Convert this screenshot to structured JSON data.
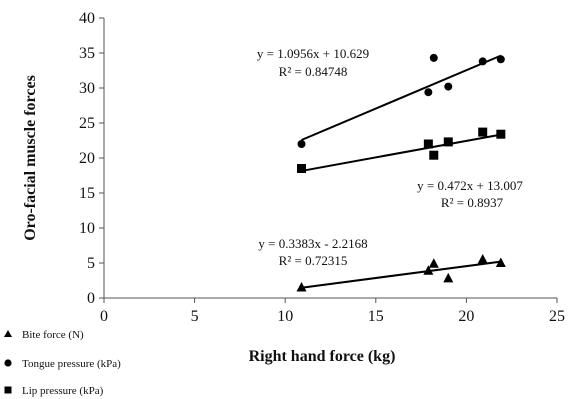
{
  "chart_data": {
    "type": "scatter",
    "title": "",
    "xlabel": "Right hand force (kg)",
    "ylabel": "Oro-facial muscle forces",
    "xlim": [
      0,
      25
    ],
    "ylim": [
      0,
      40
    ],
    "xticks": [
      "0",
      "5",
      "10",
      "15",
      "20",
      "25"
    ],
    "yticks": [
      "0",
      "5",
      "10",
      "15",
      "20",
      "25",
      "30",
      "35",
      "40"
    ],
    "grid": false,
    "legend_position": "bottom-left",
    "series": [
      {
        "name": "Bite force (N)",
        "marker": "triangle",
        "color": "#000000",
        "x": [
          10.9,
          17.9,
          18.2,
          19.0,
          20.9,
          21.9
        ],
        "y": [
          1.5,
          3.9,
          4.9,
          2.8,
          5.5,
          5.0
        ],
        "trendline": {
          "slope": 0.3383,
          "intercept": -2.2168,
          "x_range": [
            10.9,
            21.9
          ]
        },
        "equation": "y = 0.3383x - 2.2168",
        "r2": "R² = 0.72315"
      },
      {
        "name": "Tongue pressure (kPa)",
        "marker": "circle",
        "color": "#000000",
        "x": [
          10.9,
          17.9,
          18.2,
          19.0,
          20.9,
          21.9
        ],
        "y": [
          22.0,
          29.4,
          34.3,
          30.2,
          33.8,
          34.1
        ],
        "trendline": {
          "slope": 1.0956,
          "intercept": 10.629,
          "x_range": [
            10.9,
            21.9
          ]
        },
        "equation": "y = 1.0956x + 10.629",
        "r2": "R² = 0.84748"
      },
      {
        "name": "Lip pressure (kPa)",
        "marker": "square",
        "color": "#000000",
        "x": [
          10.9,
          17.9,
          18.2,
          19.0,
          20.9,
          21.9
        ],
        "y": [
          18.5,
          22.0,
          20.4,
          22.3,
          23.7,
          23.4
        ],
        "trendline": {
          "slope": 0.472,
          "intercept": 13.007,
          "x_range": [
            10.9,
            21.9
          ]
        },
        "equation": "y = 0.472x + 13.007",
        "r2": "R² = 0.8937"
      }
    ]
  }
}
